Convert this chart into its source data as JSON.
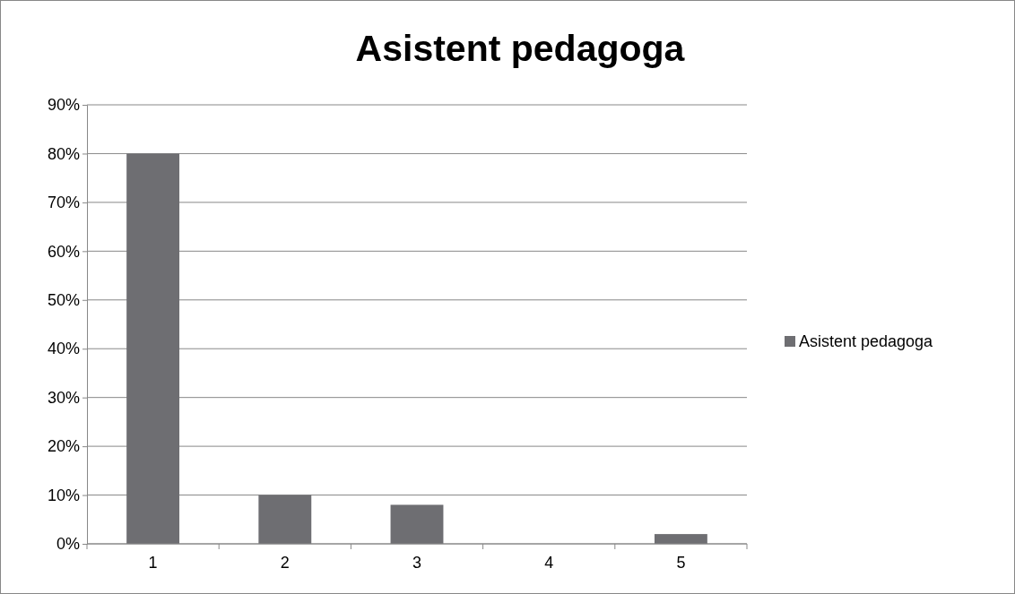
{
  "chart_data": {
    "type": "bar",
    "title": "Asistent pedagoga",
    "categories": [
      "1",
      "2",
      "3",
      "4",
      "5"
    ],
    "series": [
      {
        "name": "Asistent pedagoga",
        "color": "#6e6e72",
        "values": [
          80,
          10,
          8,
          0,
          2
        ]
      }
    ],
    "ylim": [
      0,
      90
    ],
    "yticks": [
      {
        "value": 0,
        "label": "0%"
      },
      {
        "value": 10,
        "label": "10%"
      },
      {
        "value": 20,
        "label": "20%"
      },
      {
        "value": 30,
        "label": "30%"
      },
      {
        "value": 40,
        "label": "40%"
      },
      {
        "value": 50,
        "label": "50%"
      },
      {
        "value": 60,
        "label": "60%"
      },
      {
        "value": 70,
        "label": "70%"
      },
      {
        "value": 80,
        "label": "80%"
      },
      {
        "value": 90,
        "label": "90%"
      }
    ],
    "grid": "y",
    "legend": "right"
  }
}
